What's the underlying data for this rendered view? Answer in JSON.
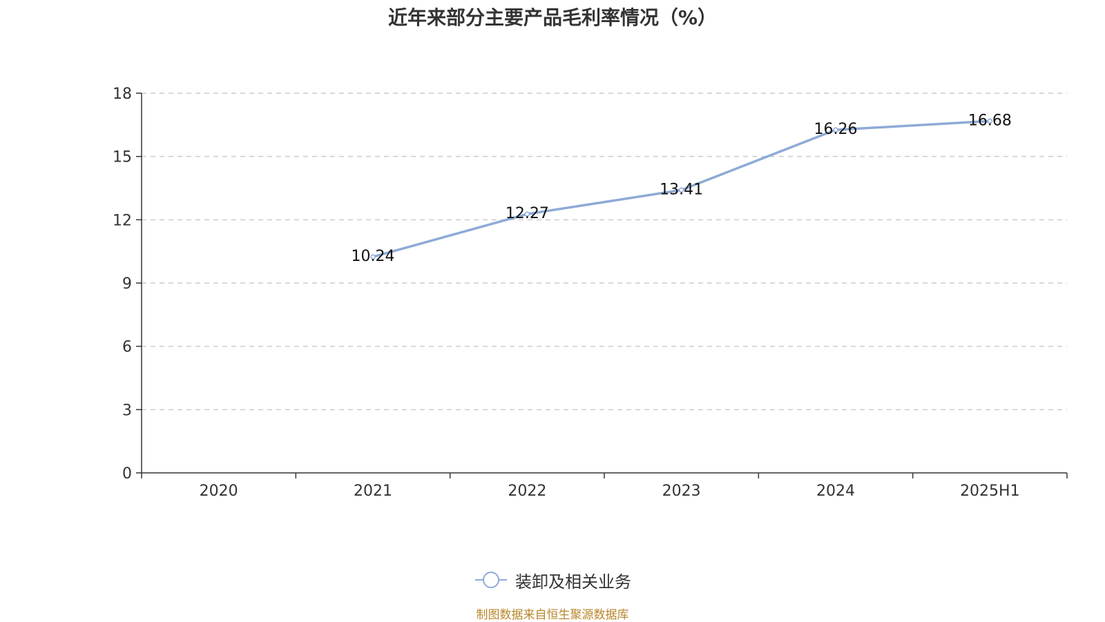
{
  "chart_data": {
    "type": "line",
    "title": "近年来部分主要产品毛利率情况（%）",
    "categories": [
      "2020",
      "2021",
      "2022",
      "2023",
      "2024",
      "2025H1"
    ],
    "series": [
      {
        "name": "装卸及相关业务",
        "values": [
          null,
          10.24,
          12.27,
          13.41,
          16.26,
          16.68
        ]
      }
    ],
    "y_ticks": [
      0,
      3,
      6,
      9,
      12,
      15,
      18
    ],
    "ylim": [
      0,
      18
    ],
    "grid": true,
    "legend_position": "bottom-center"
  },
  "colors": {
    "series": "#8eaad6",
    "grid": "#cccccc",
    "axis": "#333333",
    "source_note": "#b8862a"
  },
  "footer": {
    "source_note": "制图数据来自恒生聚源数据库"
  }
}
